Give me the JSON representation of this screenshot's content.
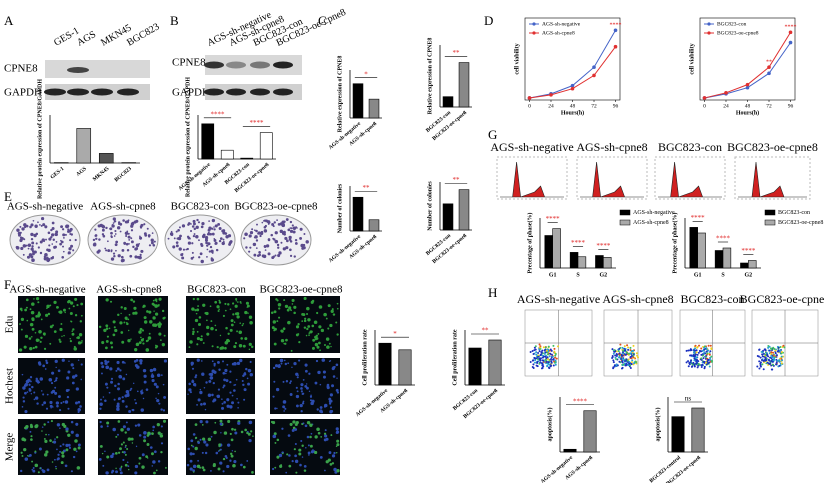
{
  "panel_labels": [
    "A",
    "B",
    "C",
    "D",
    "E",
    "F",
    "G",
    "H"
  ],
  "blot_a": {
    "lanes": [
      "GES-1",
      "AGS",
      "MKN45",
      "BGC823"
    ],
    "rows": [
      "CPNE8",
      "GAPDH"
    ]
  },
  "blot_b": {
    "lanes": [
      "AGS-sh-negative",
      "AGS-sh-cpne8",
      "BGC823-con",
      "BGC823-oe-cpne8"
    ],
    "rows": [
      "CPNE8",
      "GAPDH"
    ]
  },
  "colony_e": {
    "columns": [
      "AGS-sh-negative",
      "AGS-sh-cpne8",
      "BGC823-con",
      "BGC823-oe-cpne8"
    ]
  },
  "edu_f": {
    "columns": [
      "AGS-sh-negative",
      "AGS-sh-cpne8",
      "BGC823-con",
      "BGC823-oe-cpne8"
    ],
    "rows": [
      "Edu",
      "Hochest",
      "Merge"
    ]
  },
  "cycle_g": {
    "columns": [
      "AGS-sh-negative",
      "AGS-sh-cpne8",
      "BGC823-con",
      "BGC823-oe-cpne8"
    ]
  },
  "apoptosis_h": {
    "columns": [
      "AGS-sh-negative",
      "AGS-sh-cpne8",
      "BGC823-con",
      "BGC823-oe-cpne8"
    ]
  },
  "chart_data": [
    {
      "type": "bar",
      "ylabel": "Relative protein expression of CPNE8/GAPDH",
      "categories": [
        "GES-1",
        "AGS",
        "MKN45",
        "BGC823"
      ],
      "values": [
        0.02,
        1.8,
        0.5,
        0.02
      ],
      "colors": [
        "#ffffff",
        "#aaaaaa",
        "#555555",
        "#000000"
      ],
      "ylim": [
        0,
        2.5
      ]
    },
    {
      "type": "bar",
      "ylabel": "Relative protein expression of CPNE8/GAPDH",
      "categories": [
        "AGS-sh-negative",
        "AGS-sh-cpne8",
        "BGC823-con",
        "BGC823-oe-cpne8"
      ],
      "values": [
        0.8,
        0.2,
        0.02,
        0.6
      ],
      "colors": [
        "#000000",
        "#ffffff",
        "#000000",
        "#ffffff"
      ],
      "ylim": [
        0,
        1.0
      ],
      "annotations": [
        "****",
        "****"
      ],
      "annotation_color": "#e02020"
    },
    {
      "type": "bar",
      "ylabel": "Relative expression of CPNE8",
      "categories": [
        "AGS-sh-negative",
        "AGS-sh-cpne8"
      ],
      "values": [
        1.0,
        0.55
      ],
      "colors": [
        "#000000",
        "#888888"
      ],
      "ylim": [
        0,
        1.4
      ],
      "annotations": [
        "*"
      ],
      "annotation_color": "#e02020"
    },
    {
      "type": "bar",
      "ylabel": "Relative expression of CPNE8",
      "categories": [
        "BGC823-con",
        "BGC823-oe-cpne8"
      ],
      "values": [
        1,
        4.3
      ],
      "colors": [
        "#000000",
        "#888888"
      ],
      "ylim": [
        0,
        6
      ],
      "annotations": [
        "**"
      ],
      "annotation_color": "#e02020"
    },
    {
      "type": "line",
      "xlabel": "Hours(h)",
      "ylabel": "cell viability",
      "x": [
        0,
        24,
        48,
        72,
        96
      ],
      "xlim": [
        -5,
        101
      ],
      "xticks": [
        0,
        24,
        48,
        72,
        96
      ],
      "ylim": [
        0,
        4
      ],
      "series": [
        {
          "name": "AGS-sh-negative",
          "color": "#4463c8",
          "values": [
            0.1,
            0.3,
            0.7,
            1.6,
            3.4
          ]
        },
        {
          "name": "AGS-sh-cpne8",
          "color": "#e03030",
          "values": [
            0.1,
            0.25,
            0.55,
            1.2,
            2.6
          ]
        }
      ],
      "annotations": [
        "****"
      ],
      "annotation_color": "#e02020"
    },
    {
      "type": "line",
      "xlabel": "Hours(h)",
      "ylabel": "cell viability",
      "x": [
        0,
        24,
        48,
        72,
        96
      ],
      "xlim": [
        -5,
        101
      ],
      "xticks": [
        0,
        24,
        48,
        72,
        96
      ],
      "ylim": [
        0,
        4
      ],
      "series": [
        {
          "name": "BGC823-con",
          "color": "#4463c8",
          "values": [
            0.1,
            0.3,
            0.6,
            1.3,
            2.8
          ]
        },
        {
          "name": "BGC823-oe-cpne8",
          "color": "#e03030",
          "values": [
            0.1,
            0.35,
            0.75,
            1.6,
            3.3
          ]
        }
      ],
      "annotations": [
        "**",
        "****"
      ],
      "annotation_color": "#e02020"
    },
    {
      "type": "bar",
      "ylabel": "Number of colonies",
      "categories": [
        "AGS-sh-negative",
        "AGS-sh-cpne8"
      ],
      "values": [
        300,
        100
      ],
      "colors": [
        "#000000",
        "#888888"
      ],
      "ylim": [
        0,
        400
      ],
      "annotations": [
        "**"
      ],
      "annotation_color": "#e02020"
    },
    {
      "type": "bar",
      "ylabel": "Number of colonies",
      "categories": [
        "BGC823-con",
        "BGC823-oe-cpne8"
      ],
      "values": [
        120,
        185
      ],
      "colors": [
        "#000000",
        "#888888"
      ],
      "ylim": [
        0,
        220
      ],
      "annotations": [
        "**"
      ],
      "annotation_color": "#e02020"
    },
    {
      "type": "bar",
      "ylabel": "Precentage of phase(%)",
      "categories": [
        "G1",
        "S",
        "G2"
      ],
      "series": [
        {
          "name": "AGS-sh-negative",
          "color": "#000000",
          "values": [
            52,
            25,
            20
          ]
        },
        {
          "name": "AGS-sh-cpne8",
          "color": "#aaaaaa",
          "values": [
            63,
            18,
            17
          ]
        }
      ],
      "ylim": [
        0,
        80
      ],
      "annotations": [
        "****",
        "****",
        "****"
      ],
      "annotation_color": "#e02020"
    },
    {
      "type": "bar",
      "ylabel": "Precentage of phase(%)",
      "categories": [
        "G1",
        "S",
        "G2"
      ],
      "series": [
        {
          "name": "BGC823-con",
          "color": "#000000",
          "values": [
            65,
            28,
            8
          ]
        },
        {
          "name": "BGC823-oe-cpne8",
          "color": "#aaaaaa",
          "values": [
            56,
            32,
            12
          ]
        }
      ],
      "ylim": [
        0,
        80
      ],
      "annotations": [
        "****",
        "****",
        "****"
      ],
      "annotation_color": "#e02020"
    },
    {
      "type": "bar",
      "ylabel": "Cell proliferation rate",
      "categories": [
        "AGS-sh-negative",
        "AGS-sh-cpne8"
      ],
      "values": [
        0.38,
        0.32
      ],
      "colors": [
        "#000000",
        "#888888"
      ],
      "ylim": [
        0,
        0.5
      ],
      "annotations": [
        "*"
      ],
      "annotation_color": "#e02020"
    },
    {
      "type": "bar",
      "ylabel": "Cell proliferation rate",
      "categories": [
        "BGC823-con",
        "BGC823-oe-cpne8"
      ],
      "values": [
        0.37,
        0.45
      ],
      "colors": [
        "#000000",
        "#888888"
      ],
      "ylim": [
        0,
        0.55
      ],
      "annotations": [
        "**"
      ],
      "annotation_color": "#e02020"
    },
    {
      "type": "bar",
      "ylabel": "apoptosis(%)",
      "categories": [
        "AGS-sh-negative",
        "AGS-sh-cpne8"
      ],
      "values": [
        1,
        15
      ],
      "colors": [
        "#000000",
        "#888888"
      ],
      "ylim": [
        0,
        20
      ],
      "annotations": [
        "****"
      ],
      "annotation_color": "#e02020"
    },
    {
      "type": "bar",
      "ylabel": "apoptosis(%)",
      "categories": [
        "BGC823-control",
        "BGC823-oe-cpne8"
      ],
      "values": [
        4.5,
        5.6
      ],
      "colors": [
        "#000000",
        "#888888"
      ],
      "ylim": [
        0,
        7
      ],
      "annotations": [
        "ns"
      ],
      "annotation_color": "#000000"
    }
  ]
}
